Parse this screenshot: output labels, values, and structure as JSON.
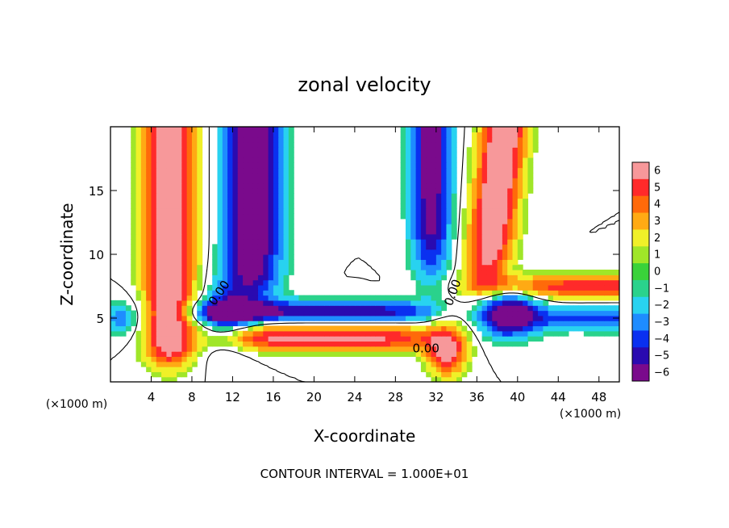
{
  "chart_data": {
    "type": "heatmap",
    "title": "zonal velocity",
    "xlabel": "X-coordinate",
    "ylabel": "Z-coordinate",
    "x_unit_label": "(×1000 m)",
    "footer": "CONTOUR INTERVAL = 1.000E+01",
    "xlim": [
      0,
      50
    ],
    "ylim": [
      0,
      20
    ],
    "x_ticks": [
      4,
      8,
      12,
      16,
      20,
      24,
      28,
      32,
      36,
      40,
      44,
      48
    ],
    "y_ticks": [
      5,
      10,
      15
    ],
    "contour_labels": [
      "0.00",
      "0.00",
      "0.00"
    ],
    "colorbar": {
      "ticks": [
        6,
        5,
        4,
        3,
        2,
        1,
        0,
        -1,
        -2,
        -3,
        -4,
        -5,
        -6
      ],
      "range": [
        -6,
        6
      ]
    }
  }
}
